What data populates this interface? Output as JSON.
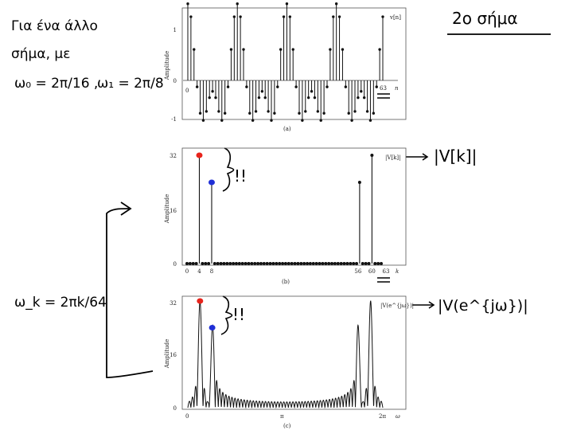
{
  "notes": {
    "top_left_line1": "Για ένα άλλο",
    "top_left_line2": "σήμα, με",
    "omega0": "ω₀ = 2π/16 ,",
    "omega1": "ω₁ = 2π/8",
    "top_right": "2ο σήμα",
    "omega_k": "ω_k = 2πk/64",
    "right_b": "|V[k]|",
    "right_c": "|V(e^{jω})|",
    "exclaim_b": "!!",
    "exclaim_c": "!!"
  },
  "colors": {
    "red_marker": "#e8241c",
    "blue_marker": "#1f2fd6",
    "ink": "#000000"
  },
  "chart_data": [
    {
      "type": "stem",
      "panel": "(a)",
      "ylabel": "Amplitude",
      "xlabel": "n",
      "legend": "v[n]",
      "x_ticks": [
        "0",
        "63"
      ],
      "y_ticks": [
        "-1",
        "0",
        "1"
      ],
      "ylim": [
        -1,
        1.9
      ],
      "x": [
        0,
        63
      ],
      "values_desc": "v[n] = cos(2πn/16) + 0.75cos(2πn/8), n = 0..63"
    },
    {
      "type": "stem",
      "panel": "(b)",
      "ylabel": "Amplitude",
      "xlabel": "k",
      "legend": "|V[k]|",
      "x_ticks": [
        "0",
        "4",
        "8",
        "56",
        "60",
        "63"
      ],
      "y_ticks": [
        "0",
        "16",
        "32"
      ],
      "ylim": [
        0,
        32
      ],
      "points": [
        {
          "k": 4,
          "value": 32
        },
        {
          "k": 8,
          "value": 24
        },
        {
          "k": 56,
          "value": 24
        },
        {
          "k": 60,
          "value": 32
        }
      ],
      "markers": [
        {
          "k": 4,
          "value": 32,
          "color": "red"
        },
        {
          "k": 8,
          "value": 24,
          "color": "blue"
        }
      ]
    },
    {
      "type": "line",
      "panel": "(c)",
      "ylabel": "Amplitude",
      "xlabel": "ω",
      "legend": "|V(e^{jω})|",
      "x_ticks": [
        "0",
        "π",
        "2π"
      ],
      "y_ticks": [
        "0",
        "16",
        "32"
      ],
      "ylim": [
        0,
        32
      ],
      "peaks": [
        {
          "omega": "2π/16",
          "value": 32
        },
        {
          "omega": "2π/8",
          "value": 24
        },
        {
          "omega": "2π·7/8",
          "value": 24
        },
        {
          "omega": "2π·15/16",
          "value": 32
        }
      ],
      "markers": [
        {
          "omega": "2π/16",
          "value": 32,
          "color": "red"
        },
        {
          "omega": "2π/8",
          "value": 24,
          "color": "blue"
        }
      ]
    }
  ]
}
